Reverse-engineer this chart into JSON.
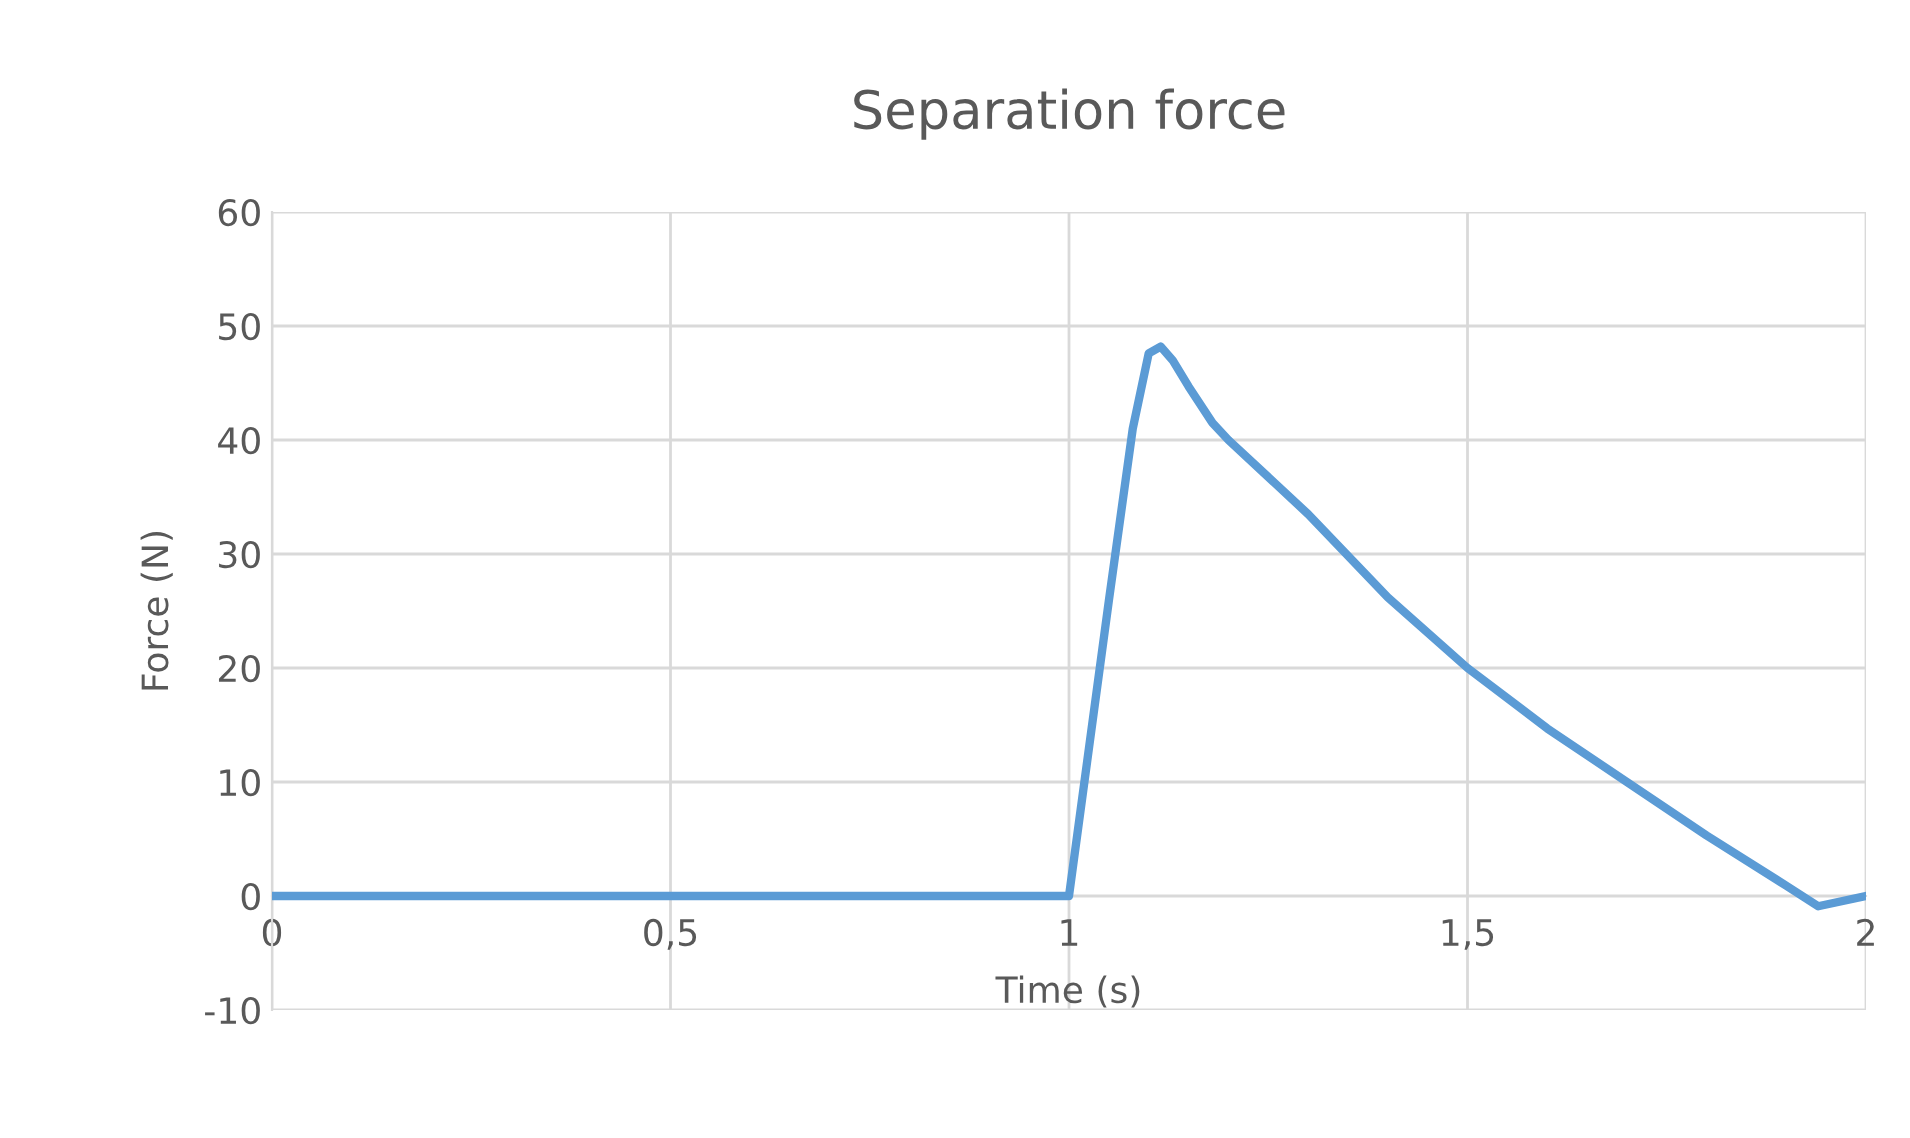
{
  "chart_data": {
    "type": "line",
    "title": "Separation force",
    "xlabel": "Time (s)",
    "ylabel": "Force (N)",
    "series": [
      {
        "color": "#5b9bd5",
        "x": [
          0,
          0.5,
          1,
          1.05,
          1.08,
          1.1,
          1.115,
          1.13,
          1.15,
          1.18,
          1.2,
          1.3,
          1.4,
          1.5,
          1.6,
          1.7,
          1.8,
          1.9,
          1.94,
          2
        ],
        "values": [
          0,
          0,
          0,
          25.9,
          41,
          47.6,
          48.2,
          47,
          44.7,
          41.5,
          40,
          33.5,
          26.2,
          20,
          14.7,
          10,
          5.3,
          0.9,
          -0.9,
          0
        ]
      }
    ],
    "xlim": [
      0,
      2
    ],
    "xticks": [
      {
        "value": 0,
        "label": "0"
      },
      {
        "value": 0.5,
        "label": "0,5"
      },
      {
        "value": 1,
        "label": "1"
      },
      {
        "value": 1.5,
        "label": "1,5"
      },
      {
        "value": 2,
        "label": "2"
      }
    ],
    "ylim": [
      -10,
      60
    ],
    "yticks": [
      -10,
      0,
      10,
      20,
      30,
      40,
      50,
      60
    ],
    "grid": true,
    "legend": false,
    "marker": "none",
    "line_style": "solid"
  }
}
